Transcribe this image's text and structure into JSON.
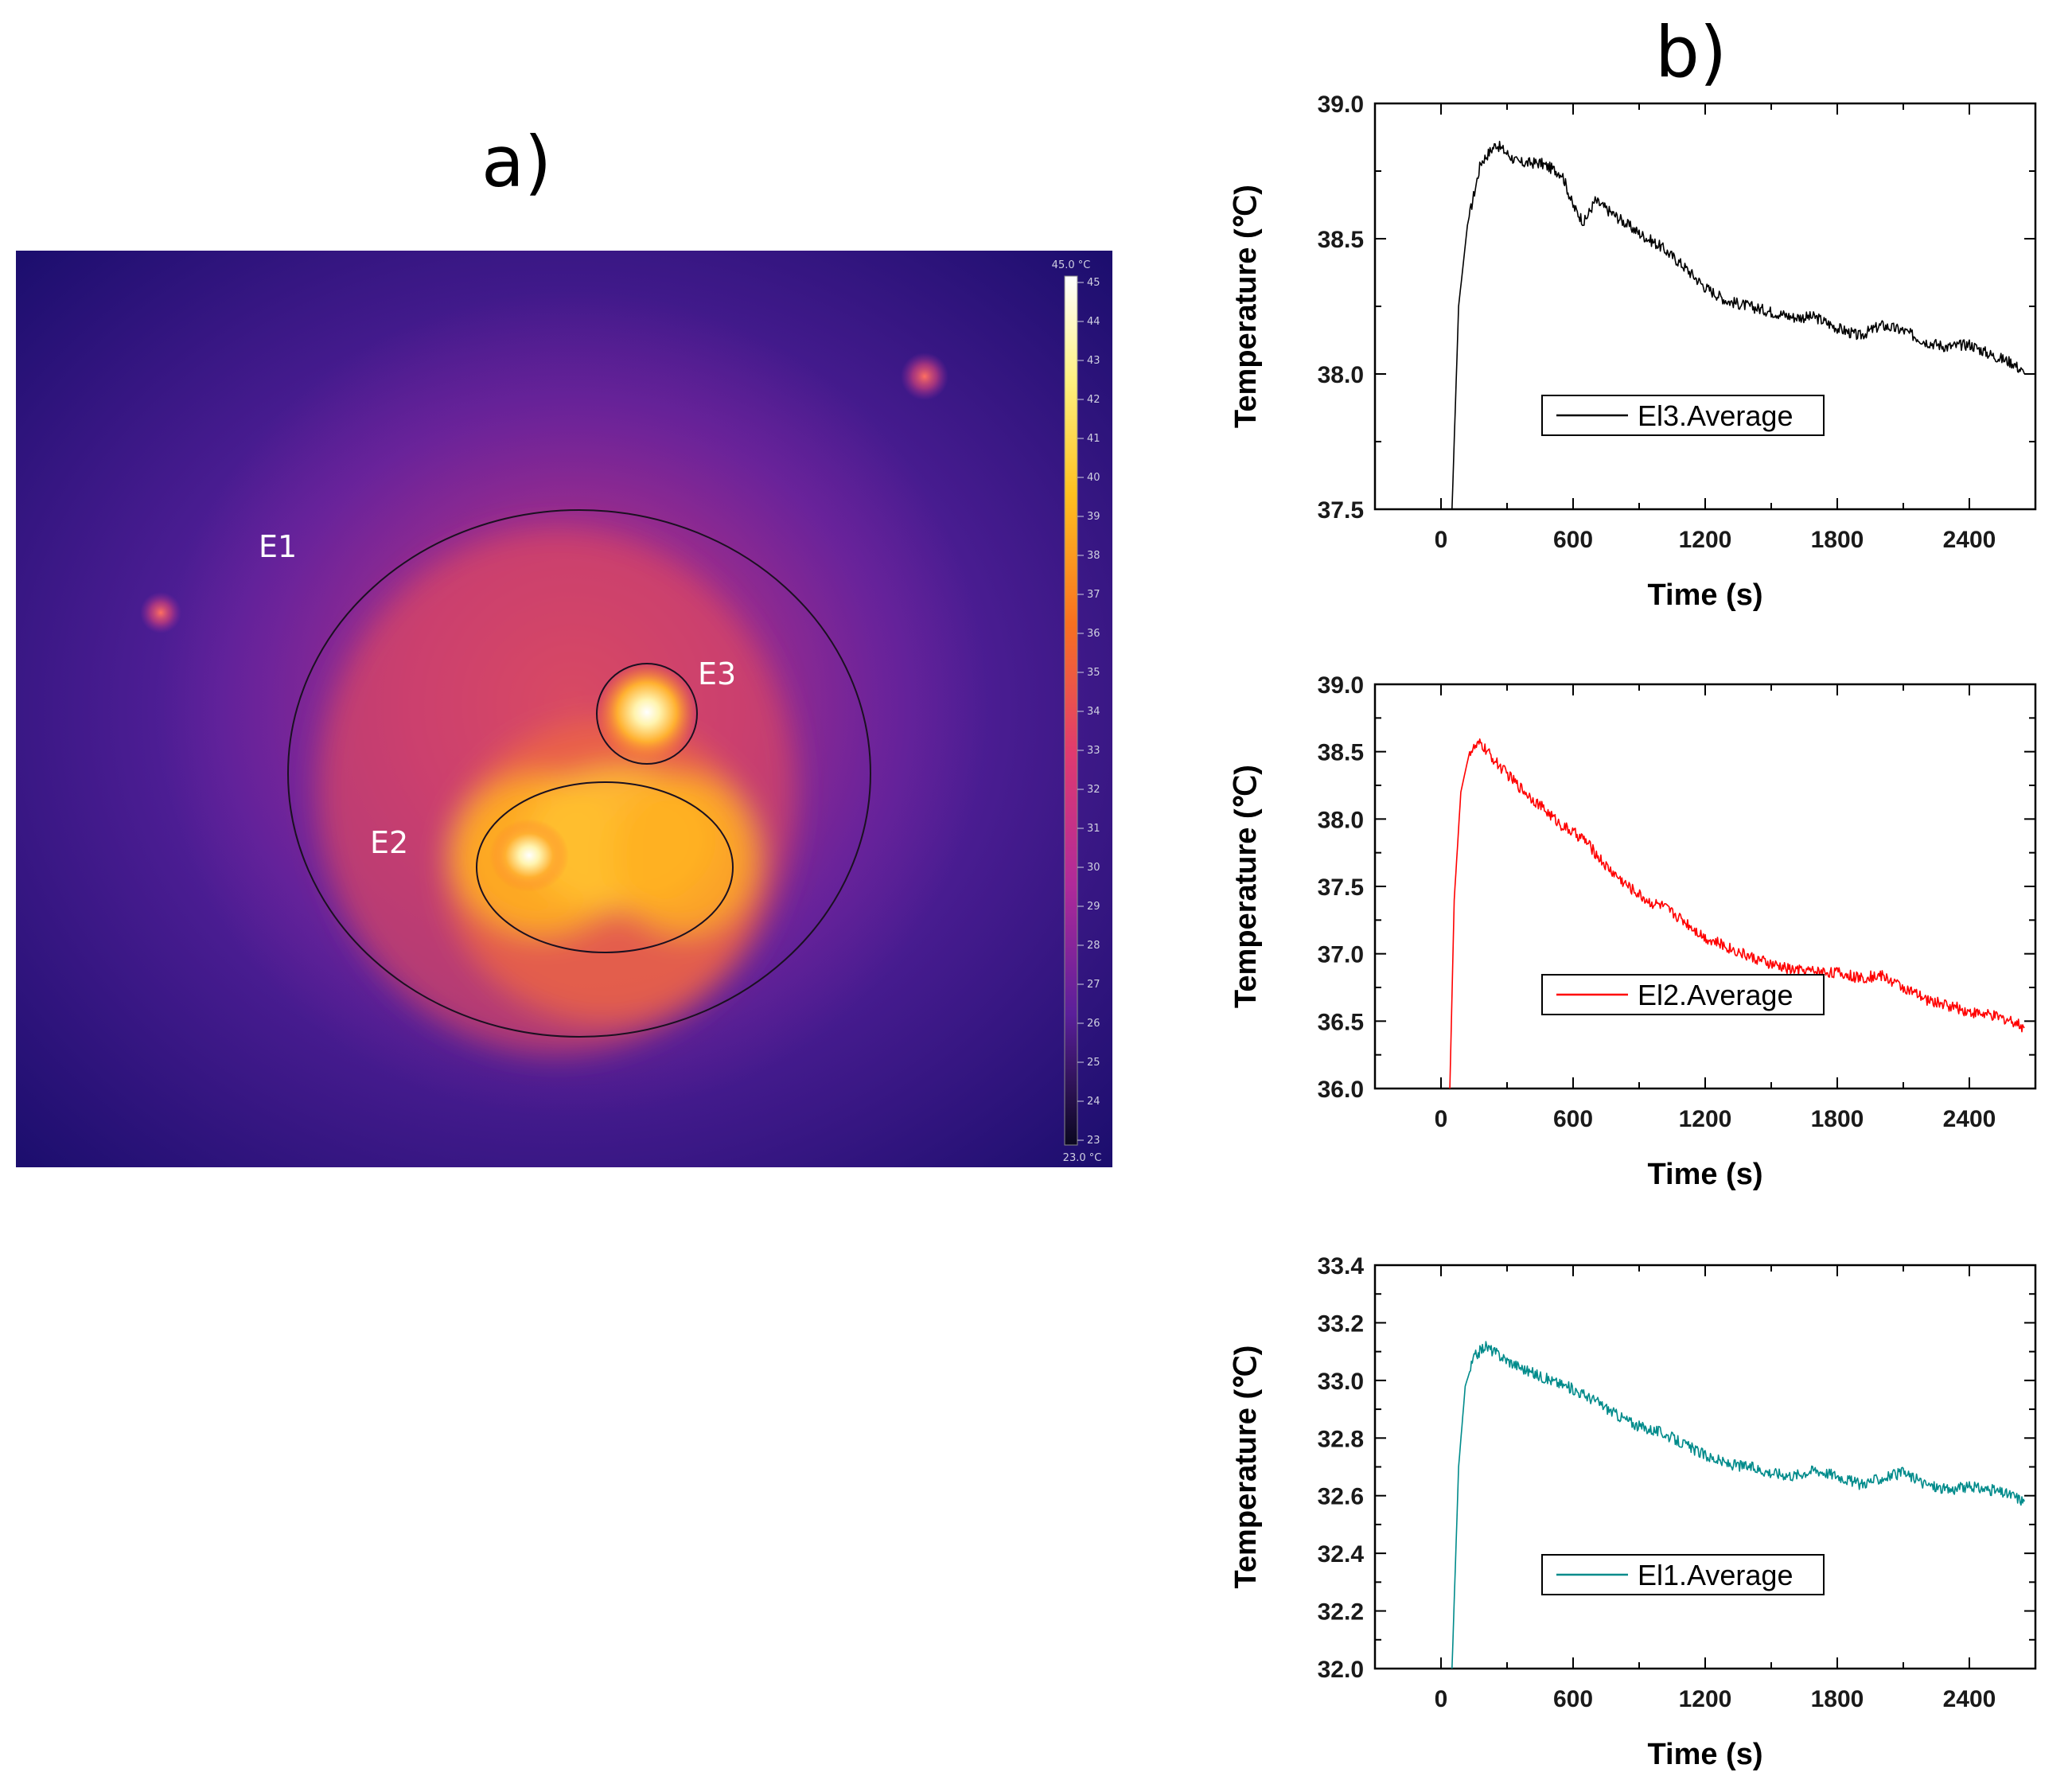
{
  "panels": {
    "a_label": "a)",
    "b_label": "b)"
  },
  "thermal_image": {
    "regions": [
      "E1",
      "E2",
      "E3"
    ],
    "colorbar": {
      "min_label": "23.0 °C",
      "max_label": "45.0 °C",
      "ticks": [
        "45",
        "44",
        "43",
        "42",
        "41",
        "40",
        "39",
        "38",
        "37",
        "36",
        "35",
        "34",
        "33",
        "32",
        "31",
        "30",
        "29",
        "28",
        "27",
        "26",
        "25",
        "24",
        "23"
      ]
    }
  },
  "chart_data": [
    {
      "type": "line",
      "xlabel": "Time (s)",
      "ylabel": "Temperature (℃)",
      "xlim": [
        -300,
        2700
      ],
      "ylim": [
        37.5,
        39.0
      ],
      "xticks": [
        0,
        600,
        1200,
        1800,
        2400
      ],
      "yticks": [
        "37.5",
        "38.0",
        "38.5",
        "39.0"
      ],
      "legend_position": "bottom-center",
      "color": "#000000",
      "series": [
        {
          "name": "El3.Average",
          "x": [
            50,
            80,
            120,
            180,
            250,
            350,
            450,
            550,
            600,
            650,
            700,
            800,
            900,
            1000,
            1100,
            1200,
            1300,
            1400,
            1500,
            1600,
            1700,
            1800,
            1900,
            2000,
            2100,
            2200,
            2300,
            2400,
            2500,
            2600,
            2650
          ],
          "y": [
            37.5,
            38.25,
            38.55,
            38.78,
            38.85,
            38.78,
            38.78,
            38.74,
            38.62,
            38.56,
            38.64,
            38.58,
            38.52,
            38.47,
            38.4,
            38.32,
            38.27,
            38.25,
            38.23,
            38.21,
            38.21,
            38.17,
            38.14,
            38.18,
            38.16,
            38.12,
            38.1,
            38.11,
            38.07,
            38.04,
            38.0
          ]
        }
      ]
    },
    {
      "type": "line",
      "xlabel": "Time (s)",
      "ylabel": "Temperature (℃)",
      "xlim": [
        -300,
        2700
      ],
      "ylim": [
        36.0,
        39.0
      ],
      "xticks": [
        0,
        600,
        1200,
        1800,
        2400
      ],
      "yticks": [
        "36.0",
        "36.5",
        "37.0",
        "37.5",
        "38.0",
        "38.5",
        "39.0"
      ],
      "legend_position": "bottom-center",
      "color": "#ff0000",
      "series": [
        {
          "name": "El2.Average",
          "x": [
            40,
            60,
            90,
            130,
            180,
            250,
            350,
            450,
            550,
            650,
            750,
            850,
            950,
            1000,
            1100,
            1200,
            1300,
            1400,
            1500,
            1600,
            1700,
            1800,
            1900,
            2000,
            2100,
            2200,
            2300,
            2400,
            2500,
            2600,
            2650
          ],
          "y": [
            36.0,
            37.4,
            38.2,
            38.5,
            38.56,
            38.42,
            38.25,
            38.1,
            37.95,
            37.85,
            37.65,
            37.5,
            37.38,
            37.36,
            37.25,
            37.12,
            37.05,
            36.98,
            36.92,
            36.88,
            36.87,
            36.86,
            36.82,
            36.84,
            36.75,
            36.66,
            36.62,
            36.57,
            36.54,
            36.5,
            36.45
          ]
        }
      ]
    },
    {
      "type": "line",
      "xlabel": "Time (s)",
      "ylabel": "Temperature (℃)",
      "xlim": [
        -300,
        2700
      ],
      "ylim": [
        32.0,
        33.4
      ],
      "xticks": [
        0,
        600,
        1200,
        1800,
        2400
      ],
      "yticks": [
        "32.0",
        "32.2",
        "32.4",
        "32.6",
        "32.8",
        "33.0",
        "33.2",
        "33.4"
      ],
      "legend_position": "bottom-center",
      "color": "#008b8b",
      "series": [
        {
          "name": "El1.Average",
          "x": [
            50,
            80,
            110,
            150,
            200,
            300,
            400,
            500,
            600,
            700,
            800,
            900,
            1000,
            1100,
            1200,
            1300,
            1400,
            1500,
            1600,
            1700,
            1800,
            1900,
            2000,
            2100,
            2200,
            2300,
            2400,
            2500,
            2600,
            2650
          ],
          "y": [
            32.0,
            32.7,
            32.98,
            33.08,
            33.12,
            33.07,
            33.03,
            33.0,
            32.97,
            32.93,
            32.88,
            32.84,
            32.82,
            32.78,
            32.74,
            32.71,
            32.7,
            32.68,
            32.67,
            32.69,
            32.67,
            32.64,
            32.66,
            32.68,
            32.64,
            32.62,
            32.63,
            32.62,
            32.6,
            32.58
          ]
        }
      ]
    }
  ]
}
